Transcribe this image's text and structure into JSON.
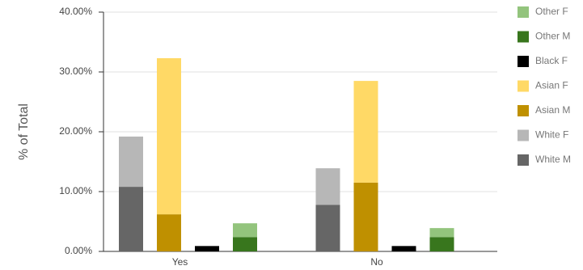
{
  "chart_data": {
    "type": "bar",
    "ylabel": "% of Total",
    "categories": [
      "Yes",
      "No"
    ],
    "ylim": [
      0,
      40
    ],
    "yticks": [
      {
        "value": 0,
        "label": "0.00%"
      },
      {
        "value": 10,
        "label": "10.00%"
      },
      {
        "value": 20,
        "label": "20.00%"
      },
      {
        "value": 30,
        "label": "30.00%"
      },
      {
        "value": 40,
        "label": "40.00%"
      }
    ],
    "grid": true,
    "groups": [
      {
        "series": [
          {
            "name": "White M",
            "color": "#666666",
            "values": [
              10.8,
              7.8
            ]
          },
          {
            "name": "White F",
            "color": "#b7b7b7",
            "values": [
              8.4,
              6.1
            ]
          }
        ]
      },
      {
        "series": [
          {
            "name": "Asian M",
            "color": "#bf9000",
            "values": [
              6.2,
              11.5
            ]
          },
          {
            "name": "Asian F",
            "color": "#ffd966",
            "values": [
              26.1,
              17.0
            ]
          }
        ]
      },
      {
        "series": [
          {
            "name": "Black F",
            "color": "#000000",
            "values": [
              0.9,
              0.9
            ]
          }
        ]
      },
      {
        "series": [
          {
            "name": "Other M",
            "color": "#38761d",
            "values": [
              2.4,
              2.4
            ]
          },
          {
            "name": "Other F",
            "color": "#93c47d",
            "values": [
              2.3,
              1.5
            ]
          }
        ]
      }
    ]
  }
}
